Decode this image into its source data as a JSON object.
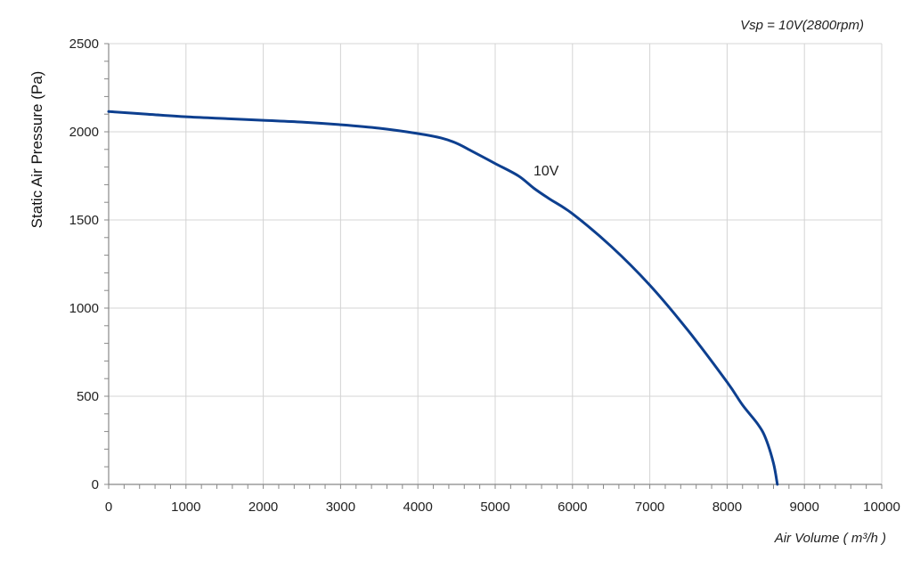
{
  "chart_data": {
    "type": "line",
    "title": "Vsp = 10V(2800rpm)",
    "xlabel": "Air Volume ( m³/h )",
    "ylabel": "Static Air Pressure  (Pa)",
    "xlim": [
      0,
      10000
    ],
    "ylim": [
      0,
      2500
    ],
    "xticks": [
      "0",
      "1000",
      "2000",
      "3000",
      "4000",
      "5000",
      "6000",
      "7000",
      "8000",
      "9000",
      "10000"
    ],
    "yticks": [
      "0",
      "500",
      "1000",
      "1500",
      "2000",
      "2500"
    ],
    "grid": true,
    "line_color": "#0d3f8f",
    "series": [
      {
        "name": "10V",
        "x": [
          0,
          500,
          1000,
          1500,
          2000,
          2500,
          3000,
          3500,
          4000,
          4300,
          4500,
          4700,
          5000,
          5300,
          5500,
          5700,
          6000,
          6500,
          7000,
          7500,
          8000,
          8200,
          8400,
          8500,
          8600,
          8650
        ],
        "y": [
          2115,
          2100,
          2085,
          2075,
          2065,
          2055,
          2040,
          2020,
          1990,
          1965,
          1935,
          1890,
          1820,
          1750,
          1680,
          1620,
          1535,
          1350,
          1130,
          870,
          580,
          450,
          340,
          260,
          120,
          0
        ]
      }
    ]
  }
}
